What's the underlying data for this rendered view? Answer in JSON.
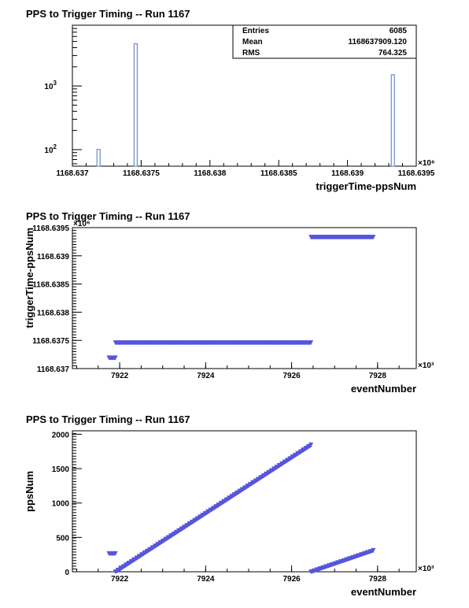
{
  "chart_data": [
    {
      "type": "bar",
      "title": "PPS to Trigger Timing -- Run 1167",
      "xlabel": "triggerTime-ppsNum",
      "ylabel": "",
      "x_multiplier": "×10⁶",
      "xlim": [
        1168.637,
        1168.6395
      ],
      "log_y": true,
      "ylim": [
        55,
        9000
      ],
      "x_ticks": [
        "1168.637",
        "1168.6375",
        "1168.638",
        "1168.6385",
        "1168.639",
        "1168.6395"
      ],
      "y_ticks": [
        {
          "base": "10",
          "exp": "2"
        },
        {
          "base": "10",
          "exp": "3"
        }
      ],
      "bars": [
        {
          "x": 1168.63719,
          "value": 101
        },
        {
          "x": 1168.63746,
          "value": 4600
        },
        {
          "x": 1168.63933,
          "value": 1500
        }
      ],
      "bar_color": "#6f8ccf",
      "stats": {
        "entries_label": "Entries",
        "entries": "6085",
        "mean_label": "Mean",
        "mean": "1168637909.120",
        "rms_label": "RMS",
        "rms": "764.325"
      }
    },
    {
      "type": "scatter",
      "title": "PPS to Trigger Timing -- Run 1167",
      "xlabel": "eventNumber",
      "ylabel": "triggerTime-ppsNum",
      "x_multiplier": "×10³",
      "y_multiplier": "×10⁶",
      "xlim": [
        7920.9,
        7928.9
      ],
      "ylim": [
        1168.637,
        1168.6395
      ],
      "x_ticks": [
        "7922",
        "7924",
        "7926",
        "7928"
      ],
      "y_ticks": [
        "1168.637",
        "1168.6375",
        "1168.638",
        "1168.6385",
        "1168.639",
        "1168.6395"
      ],
      "segments": [
        {
          "x": [
            7921.75,
            7921.9
          ],
          "y": [
            1168.63719,
            1168.63719
          ]
        },
        {
          "x": [
            7921.9,
            7926.45
          ],
          "y": [
            1168.63746,
            1168.63746
          ]
        },
        {
          "x": [
            7926.45,
            7927.9
          ],
          "y": [
            1168.63933,
            1168.63933
          ]
        }
      ],
      "color": "#5555dd"
    },
    {
      "type": "scatter",
      "title": "PPS to Trigger Timing -- Run 1167",
      "xlabel": "eventNumber",
      "ylabel": "ppsNum",
      "x_multiplier": "×10³",
      "xlim": [
        7920.9,
        7928.9
      ],
      "ylim": [
        0,
        2050
      ],
      "x_ticks": [
        "7922",
        "7924",
        "7926",
        "7928"
      ],
      "y_ticks": [
        "0",
        "500",
        "1000",
        "1500",
        "2000"
      ],
      "segments": [
        {
          "x": [
            7921.75,
            7921.9
          ],
          "y": [
            265,
            265
          ]
        },
        {
          "x": [
            7921.9,
            7926.45
          ],
          "y": [
            0,
            1845
          ]
        },
        {
          "x": [
            7926.45,
            7927.9
          ],
          "y": [
            0,
            310
          ]
        }
      ],
      "color": "#5555dd"
    }
  ]
}
